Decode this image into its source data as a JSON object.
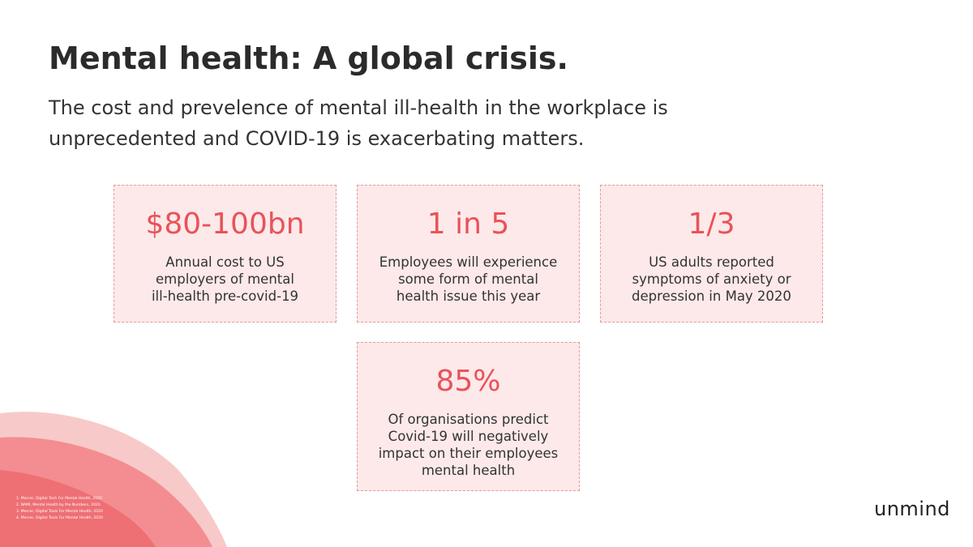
{
  "header": {
    "title": "Mental health: A global crisis.",
    "subtitle_lines": [
      "The cost and prevelence of mental ill-health in the workplace is",
      "unprecedented and COVID-19 is exacerbating matters."
    ]
  },
  "cards": [
    {
      "stat": "$80-100bn",
      "description_lines": [
        "Annual cost to US",
        "employers of mental",
        "ill-health pre-covid-19"
      ]
    },
    {
      "stat": "1 in 5",
      "description_lines": [
        "Employees will experience",
        "some form of mental",
        "health issue this year"
      ]
    },
    {
      "stat": "1/3",
      "description_lines": [
        "US adults reported",
        "symptoms of anxiety or",
        "depression in May 2020"
      ]
    },
    {
      "stat": "85%",
      "description_lines": [
        "Of organisations predict",
        "Covid-19 will negatively",
        "impact on their employees",
        "mental health"
      ]
    }
  ],
  "footnotes": [
    "1. Mercer, Digital Tech For Mental Health, 2020",
    "2. NAMI, Mental Health by the Numbers, 2020",
    "3. Mercer, Digital Tools For Mental Health, 2020",
    "4. Mercer, Digital Tools For Mental Health, 2020"
  ],
  "logo": "unmind"
}
